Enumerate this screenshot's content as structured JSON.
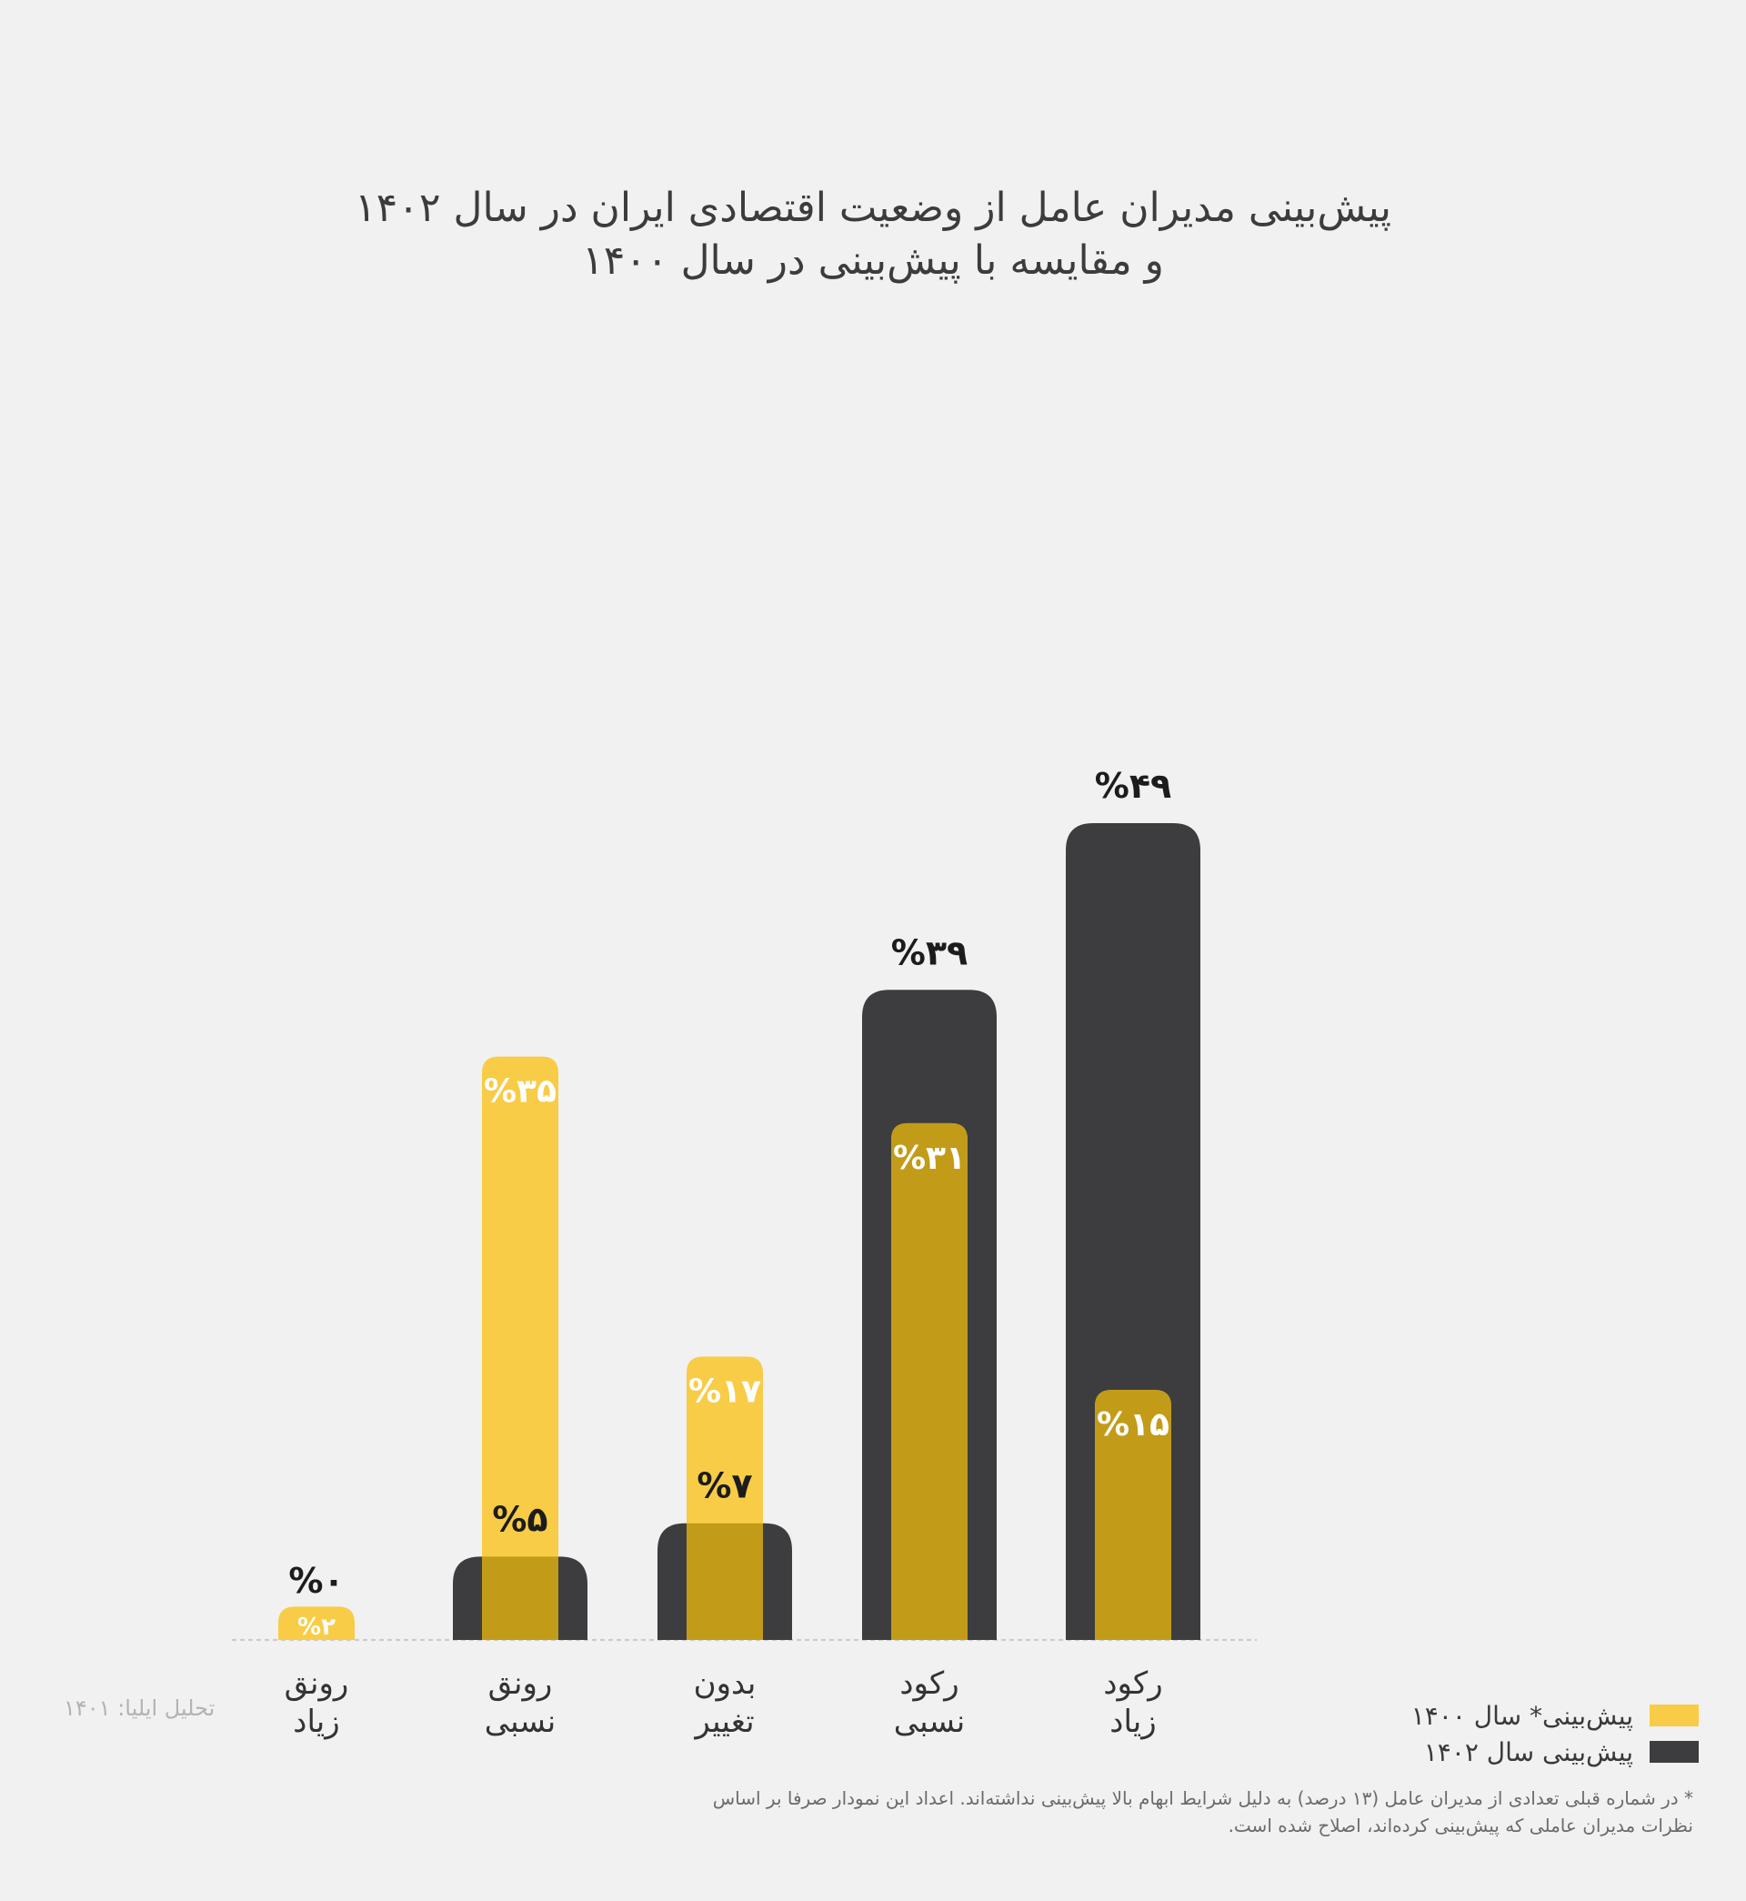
{
  "title_line1": "پیش‌بینی مدیران عامل از وضعیت اقتصادی ایران در سال ۱۴۰۲",
  "title_line2": "و مقایسه با پیش‌بینی در سال ۱۴۰۰",
  "source": "تحلیل ایلیا: ۱۴۰۱",
  "footnote": "* در شماره قبلی تعدادی از مدیران عامل (۱۳ درصد) به دلیل شرایط ابهام بالا پیش‌بینی نداشته‌اند. اعداد این نمودار صرفا بر اساس نظرات مدیران عاملی که پیش‌بینی کرده‌اند، اصلاح شده است.",
  "colors": {
    "series_1400": "#f8cc46",
    "series_1402": "#3d3d3f",
    "overlap": "#c29b18",
    "label_dark": "#1c1c1c",
    "label_light": "#ffffff"
  },
  "chart_data": {
    "type": "bar",
    "title": "پیش‌بینی مدیران عامل از وضعیت اقتصادی ایران در سال ۱۴۰۲ و مقایسه با پیش‌بینی در سال ۱۴۰۰",
    "categories": [
      [
        "رونق",
        "زیاد"
      ],
      [
        "رونق",
        "نسبی"
      ],
      [
        "بدون",
        "تغییر"
      ],
      [
        "رکود",
        "نسبی"
      ],
      [
        "رکود",
        "زیاد"
      ]
    ],
    "series": [
      {
        "name": "پیش‌بینی سال ۱۴۰۲",
        "values": [
          0,
          5,
          7,
          39,
          49
        ],
        "labels": [
          "%۰",
          "%۵",
          "%۷",
          "%۳۹",
          "%۴۹"
        ]
      },
      {
        "name": "پیش‌بینی* سال ۱۴۰۰",
        "values": [
          2,
          35,
          17,
          31,
          15
        ],
        "labels": [
          "%۲",
          "%۳۵",
          "%۱۷",
          "%۳۱",
          "%۱۵"
        ]
      }
    ],
    "ylim": [
      0,
      50
    ],
    "grid": false,
    "legend_position": "bottom-right"
  }
}
